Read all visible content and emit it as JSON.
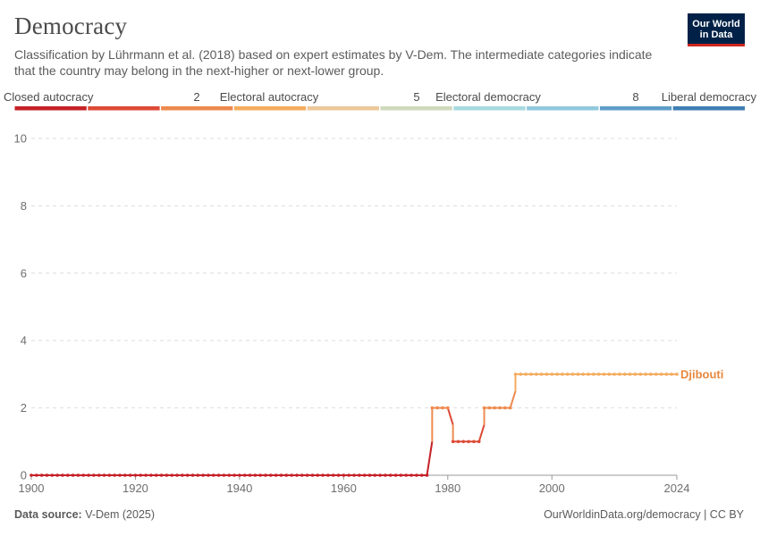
{
  "header": {
    "title": "Democracy",
    "subtitle": "Classification by Lührmann et al. (2018) based on expert estimates by V-Dem. The intermediate categories indicate that the country may belong in the next-higher or next-lower group.",
    "logo_line1": "Our World",
    "logo_line2": "in Data"
  },
  "legend": {
    "labels": [
      "Closed autocracy",
      "2",
      "Electoral autocracy",
      "5",
      "Electoral democracy",
      "8",
      "Liberal democracy"
    ],
    "colors": [
      "#c62127",
      "#dd4a36",
      "#ed8a4f",
      "#f4ac5f",
      "#ecc89a",
      "#cfd9bc",
      "#a7d9e0",
      "#92c8dd",
      "#5e9ec8",
      "#3f7eb4"
    ]
  },
  "footer": {
    "source_label": "Data source:",
    "source_value": "V-Dem (2025)",
    "right": "OurWorldinData.org/democracy | CC BY"
  },
  "chart_data": {
    "type": "line",
    "xlabel": "",
    "ylabel": "",
    "xlim": [
      1900,
      2024
    ],
    "ylim": [
      0,
      10
    ],
    "x_ticks": [
      "1900",
      "1920",
      "1940",
      "1960",
      "1980",
      "2000",
      "2024"
    ],
    "y_ticks": [
      "0",
      "2",
      "4",
      "6",
      "8",
      "10"
    ],
    "grid": true,
    "series": [
      {
        "name": "Djibouti",
        "color": "#e8883e",
        "points": [
          {
            "x": 1900,
            "y": 0
          },
          {
            "x": 1975,
            "y": 0
          },
          {
            "x": 1976,
            "y": 0
          },
          {
            "x": 1977,
            "y": 2
          },
          {
            "x": 1978,
            "y": 2
          },
          {
            "x": 1979,
            "y": 2
          },
          {
            "x": 1980,
            "y": 2
          },
          {
            "x": 1981,
            "y": 1
          },
          {
            "x": 1982,
            "y": 1
          },
          {
            "x": 1983,
            "y": 1
          },
          {
            "x": 1984,
            "y": 1
          },
          {
            "x": 1985,
            "y": 1
          },
          {
            "x": 1986,
            "y": 1
          },
          {
            "x": 1987,
            "y": 2
          },
          {
            "x": 1988,
            "y": 2
          },
          {
            "x": 1989,
            "y": 2
          },
          {
            "x": 1990,
            "y": 2
          },
          {
            "x": 1991,
            "y": 2
          },
          {
            "x": 1992,
            "y": 2
          },
          {
            "x": 1993,
            "y": 3
          },
          {
            "x": 2024,
            "y": 3
          }
        ]
      }
    ]
  }
}
